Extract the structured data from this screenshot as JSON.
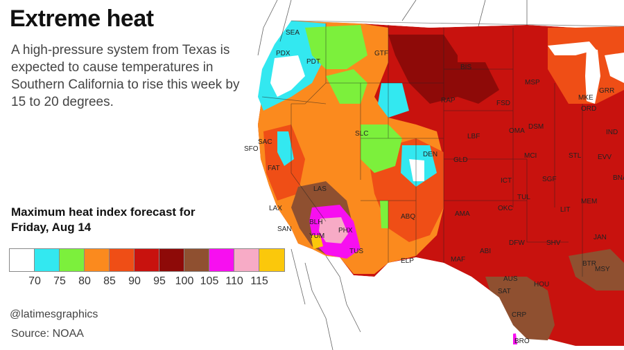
{
  "header": {
    "title": "Extreme heat",
    "description": "A high-pressure system from Texas is expected to cause temperatures in Southern California to rise this week by 15 to 20 degrees."
  },
  "legend": {
    "title": "Maximum heat index forecast for Friday, Aug 14",
    "bins": [
      {
        "color": "#ffffff"
      },
      {
        "color": "#33e8f0"
      },
      {
        "color": "#7cf03c"
      },
      {
        "color": "#fb8a1e"
      },
      {
        "color": "#ef4e16"
      },
      {
        "color": "#c8120e"
      },
      {
        "color": "#8e0a08"
      },
      {
        "color": "#8f5030"
      },
      {
        "color": "#f70ff0"
      },
      {
        "color": "#f7abc6"
      },
      {
        "color": "#fbc80b"
      }
    ],
    "ticks": [
      "70",
      "75",
      "80",
      "85",
      "90",
      "95",
      "100",
      "105",
      "110",
      "115"
    ]
  },
  "footer": {
    "credit": "@latimesgraphics",
    "source": "Source: NOAA"
  },
  "cities": [
    "SEA",
    "PDX",
    "PDT",
    "GTF",
    "BIS",
    "MSP",
    "RAP",
    "FSD",
    "MKE",
    "GRR",
    "ORD",
    "OMA",
    "DSM",
    "SLC",
    "LBF",
    "IND",
    "SAC",
    "SFO",
    "FAT",
    "DEN",
    "GLD",
    "MCI",
    "STL",
    "EVV",
    "LAS",
    "ICT",
    "SGF",
    "TUL",
    "BNA",
    "LAX",
    "SAN",
    "BLH",
    "PHX",
    "ABQ",
    "AMA",
    "OKC",
    "LIT",
    "MEM",
    "YUM",
    "TUS",
    "ELP",
    "MAF",
    "ABI",
    "DFW",
    "SHV",
    "JAN",
    "BTR",
    "MSY",
    "AUS",
    "HOU",
    "SAT",
    "CRP",
    "BRO"
  ],
  "colors": {
    "white": "#ffffff",
    "cyan": "#33e8f0",
    "green": "#7cf03c",
    "orange": "#fb8a1e",
    "redorange": "#ef4e16",
    "red": "#c8120e",
    "darkred": "#8e0a08",
    "brown": "#8f5030",
    "magenta": "#f70ff0",
    "pink": "#f7abc6",
    "yellow": "#fbc80b"
  }
}
